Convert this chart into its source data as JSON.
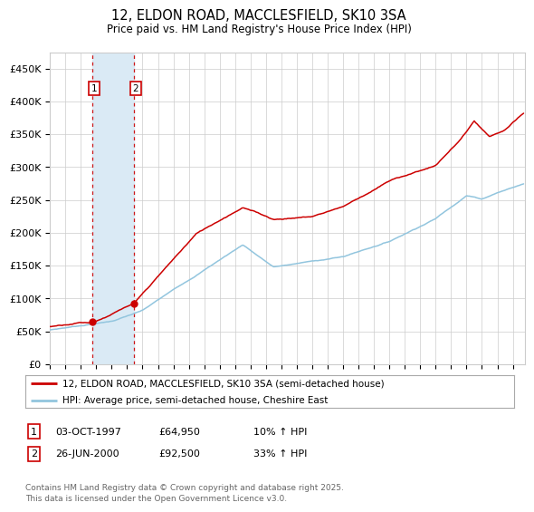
{
  "title_line1": "12, ELDON ROAD, MACCLESFIELD, SK10 3SA",
  "title_line2": "Price paid vs. HM Land Registry's House Price Index (HPI)",
  "background_color": "#ffffff",
  "grid_color": "#cccccc",
  "sale1_t": 1997.75,
  "sale1_price": 64950,
  "sale2_t": 2000.42,
  "sale2_price": 92500,
  "legend_line1": "12, ELDON ROAD, MACCLESFIELD, SK10 3SA (semi-detached house)",
  "legend_line2": "HPI: Average price, semi-detached house, Cheshire East",
  "footer": "Contains HM Land Registry data © Crown copyright and database right 2025.\nThis data is licensed under the Open Government Licence v3.0.",
  "ylim": [
    0,
    475000
  ],
  "yticks": [
    0,
    50000,
    100000,
    150000,
    200000,
    250000,
    300000,
    350000,
    400000,
    450000
  ],
  "ytick_labels": [
    "£0",
    "£50K",
    "£100K",
    "£150K",
    "£200K",
    "£250K",
    "£300K",
    "£350K",
    "£400K",
    "£450K"
  ],
  "hpi_color": "#92c5de",
  "price_color": "#cc0000",
  "vline_color": "#cc0000",
  "shade_color": "#daeaf5",
  "xlim_start": 1995.0,
  "xlim_end": 2025.8
}
